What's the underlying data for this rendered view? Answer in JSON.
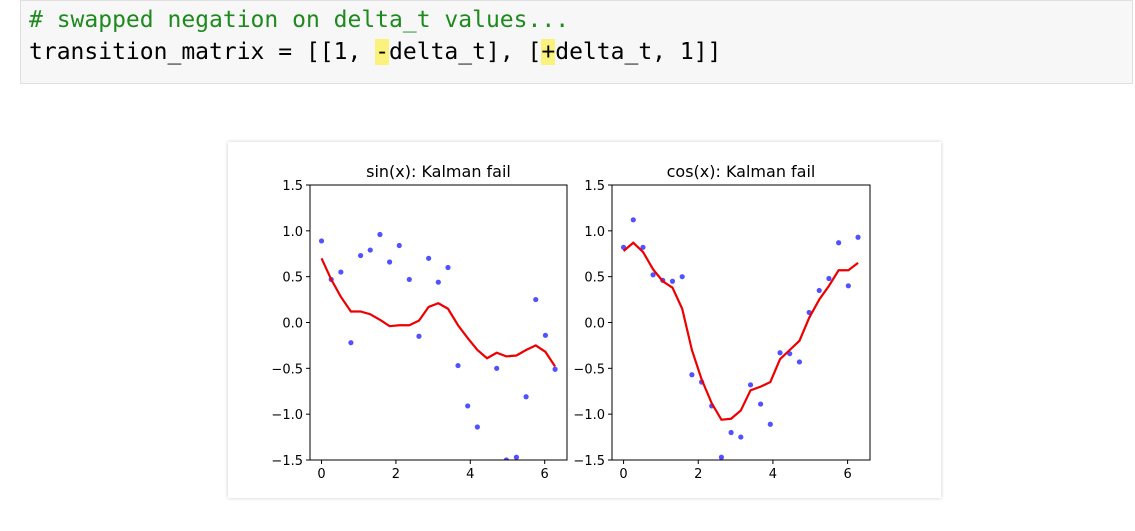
{
  "code": {
    "comment": "# swapped negation on delta_t values...",
    "line": [
      "transition_matrix = [[1, ",
      "-",
      "delta_t], [",
      "+",
      "delta_t, 1]]"
    ]
  },
  "chart_data": [
    {
      "type": "scatter",
      "title": "sin(x): Kalman fail",
      "x": [
        0,
        0.26,
        0.52,
        0.79,
        1.05,
        1.31,
        1.57,
        1.83,
        2.09,
        2.36,
        2.62,
        2.88,
        3.14,
        3.4,
        3.67,
        3.93,
        4.19,
        4.45,
        4.71,
        4.97,
        5.24,
        5.5,
        5.76,
        6.02,
        6.28
      ],
      "series": [
        {
          "style": "markers",
          "color": "#3333ff",
          "values": [
            0.89,
            0.47,
            0.55,
            -0.22,
            0.73,
            0.79,
            0.96,
            0.66,
            0.84,
            0.47,
            -0.15,
            0.7,
            0.44,
            0.6,
            -0.47,
            -0.91,
            -1.14,
            null,
            -0.5,
            -1.5,
            -1.47,
            -0.81,
            0.25,
            -0.14,
            -0.51
          ]
        },
        {
          "style": "line",
          "color": "#ee0000",
          "values": [
            0.7,
            0.47,
            0.28,
            0.12,
            0.12,
            0.09,
            0.03,
            -0.04,
            -0.03,
            -0.03,
            0.02,
            0.17,
            0.21,
            0.15,
            -0.03,
            -0.17,
            -0.3,
            -0.39,
            -0.33,
            -0.37,
            -0.36,
            -0.3,
            -0.25,
            -0.32,
            -0.48
          ]
        }
      ],
      "xlim": [
        -0.31,
        6.6
      ],
      "ylim": [
        -1.5,
        1.5
      ],
      "xticks": [
        0,
        2,
        4,
        6
      ],
      "yticks": [
        {
          "value": -1.5,
          "label": "−1.5"
        },
        {
          "value": -1,
          "label": "−1.0"
        },
        {
          "value": -0.5,
          "label": "−0.5"
        },
        {
          "value": 0,
          "label": "0.0"
        },
        0.5,
        {
          "value": 1,
          "label": "1.0"
        },
        1.5
      ]
    },
    {
      "type": "scatter",
      "title": "cos(x): Kalman fail",
      "x": [
        0,
        0.26,
        0.52,
        0.79,
        1.05,
        1.31,
        1.57,
        1.83,
        2.09,
        2.36,
        2.62,
        2.88,
        3.14,
        3.4,
        3.67,
        3.93,
        4.19,
        4.45,
        4.71,
        4.97,
        5.24,
        5.5,
        5.76,
        6.02,
        6.28
      ],
      "series": [
        {
          "style": "markers",
          "color": "#3333ff",
          "values": [
            0.82,
            1.12,
            0.82,
            0.52,
            0.46,
            0.45,
            0.5,
            -0.57,
            -0.65,
            -0.91,
            -1.47,
            -1.2,
            -1.25,
            -0.68,
            -0.89,
            -1.11,
            -0.33,
            -0.34,
            -0.43,
            0.11,
            0.35,
            0.48,
            0.87,
            0.4,
            0.93
          ]
        },
        {
          "style": "line",
          "color": "#ee0000",
          "values": [
            0.78,
            0.87,
            0.77,
            0.58,
            0.45,
            0.38,
            0.15,
            -0.3,
            -0.62,
            -0.88,
            -1.06,
            -1.05,
            -0.96,
            -0.74,
            -0.7,
            -0.65,
            -0.4,
            -0.3,
            -0.2,
            0.05,
            0.25,
            0.4,
            0.57,
            0.57,
            0.65
          ]
        }
      ],
      "xlim": [
        -0.31,
        6.6
      ],
      "ylim": [
        -1.5,
        1.5
      ],
      "xticks": [
        0,
        2,
        4,
        6
      ],
      "yticks": [
        {
          "value": -1.5,
          "label": "−1.5"
        },
        {
          "value": -1,
          "label": "−1.0"
        },
        {
          "value": -0.5,
          "label": "−0.5"
        },
        {
          "value": 0,
          "label": "0.0"
        },
        0.5,
        {
          "value": 1,
          "label": "1.0"
        },
        1.5
      ]
    }
  ]
}
